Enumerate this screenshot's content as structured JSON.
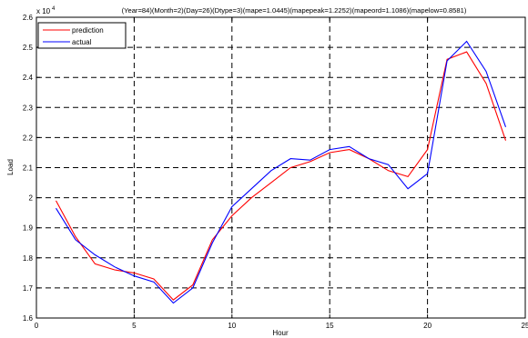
{
  "chart_data": {
    "type": "line",
    "title": "(Year=84)(Month=2)(Day=26)(Dtype=3)(mape=1.0445)(mapepeak=1.2252)(mapeord=1.1086)(mapelow=0.8581)",
    "xlabel": "Hour",
    "ylabel": "Load",
    "y_multiplier_label": "x 10",
    "y_multiplier_exponent": "4",
    "xlim": [
      0,
      25
    ],
    "ylim": [
      1.6,
      2.6
    ],
    "x_ticks": [
      0,
      5,
      10,
      15,
      20,
      25
    ],
    "y_ticks": [
      1.6,
      1.7,
      1.8,
      1.9,
      2.0,
      2.1,
      2.2,
      2.3,
      2.4,
      2.5,
      2.6
    ],
    "x_tick_labels": [
      "0",
      "5",
      "10",
      "15",
      "20",
      "25"
    ],
    "y_tick_labels": [
      "1.6",
      "1.7",
      "1.8",
      "1.9",
      "2",
      "2.1",
      "2.2",
      "2.3",
      "2.4",
      "2.5",
      "2.6"
    ],
    "grid": true,
    "legend_position": "top-left",
    "x": [
      1,
      2,
      3,
      4,
      5,
      6,
      7,
      8,
      9,
      10,
      11,
      12,
      13,
      14,
      15,
      16,
      17,
      18,
      19,
      20,
      21,
      22,
      23,
      24
    ],
    "series": [
      {
        "name": "prediction",
        "color": "#ff0000",
        "values": [
          1.99,
          1.87,
          1.78,
          1.76,
          1.75,
          1.73,
          1.66,
          1.71,
          1.86,
          1.94,
          2.0,
          2.05,
          2.1,
          2.12,
          2.15,
          2.16,
          2.13,
          2.09,
          2.07,
          2.16,
          2.46,
          2.485,
          2.38,
          2.19
        ]
      },
      {
        "name": "actual",
        "color": "#0000ff",
        "values": [
          1.965,
          1.86,
          1.81,
          1.77,
          1.74,
          1.72,
          1.65,
          1.7,
          1.85,
          1.97,
          2.03,
          2.09,
          2.13,
          2.125,
          2.16,
          2.17,
          2.13,
          2.11,
          2.03,
          2.08,
          2.455,
          2.52,
          2.42,
          2.235
        ]
      }
    ]
  }
}
